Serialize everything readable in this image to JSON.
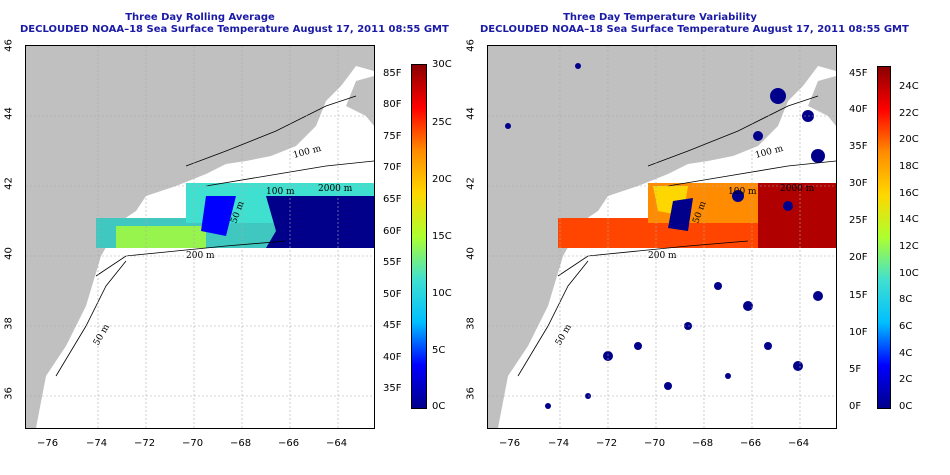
{
  "left_panel": {
    "title_line1": "Three Day Rolling Average",
    "title_line2": "DECLOUDED NOAA–18 Sea Surface Temperature August 17, 2011 08:55 GMT",
    "colorbar_fahrenheit": [
      "85F",
      "80F",
      "75F",
      "70F",
      "65F",
      "60F",
      "55F",
      "50F",
      "45F",
      "40F",
      "35F"
    ],
    "colorbar_celsius": [
      "30C",
      "25C",
      "20C",
      "15C",
      "10C",
      "5C",
      "0C"
    ],
    "colormap": [
      "#00008b",
      "#0000ff",
      "#00bfff",
      "#40e0d0",
      "#adff2f",
      "#ffd700",
      "#ff8c00",
      "#ff0000",
      "#8b0000"
    ]
  },
  "right_panel": {
    "title_line1": "Three Day Temperature Variability",
    "title_line2": "DECLOUDED NOAA–18 Sea Surface Temperature August 17, 2011 08:55 GMT",
    "colorbar_fahrenheit": [
      "45F",
      "40F",
      "35F",
      "30F",
      "25F",
      "20F",
      "15F",
      "10F",
      "5F",
      "0F"
    ],
    "colorbar_celsius": [
      "24C",
      "22C",
      "20C",
      "18C",
      "16C",
      "14C",
      "12C",
      "10C",
      "8C",
      "6C",
      "4C",
      "2C",
      "0C"
    ],
    "colormap": [
      "#00008b",
      "#0000ff",
      "#00bfff",
      "#40e0d0",
      "#adff2f",
      "#ffd700",
      "#ff8c00",
      "#ff0000",
      "#8b0000"
    ]
  },
  "axes": {
    "lon_ticks": [
      "−76",
      "−74",
      "−72",
      "−70",
      "−68",
      "−66",
      "−64"
    ],
    "lat_ticks": [
      "36",
      "38",
      "40",
      "42",
      "44",
      "46"
    ]
  },
  "contour_labels": [
    "100 m",
    "2000 m",
    "100 m",
    "50 m",
    "200 m",
    "50 m"
  ],
  "colors": {
    "land": "#c0c0c0",
    "title": "#1a1aa6",
    "contour": "#000000",
    "grid": "#aaaaaa"
  }
}
